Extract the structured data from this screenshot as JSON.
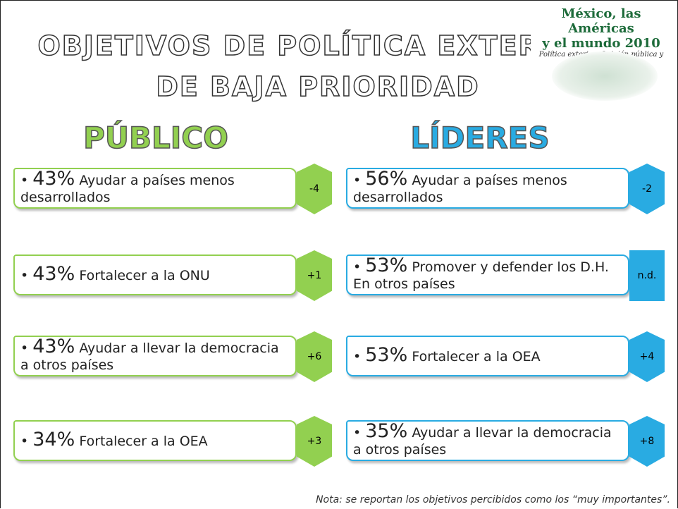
{
  "title": {
    "line1": "OBJETIVOS DE POLÍTICA EXTERIOR",
    "line2": "DE BAJA PRIORIDAD"
  },
  "logo": {
    "line1": "México, las Américas",
    "line2": "y el mundo 2010",
    "subtitle": "Política exterior: Opinión pública y líderes"
  },
  "columns": [
    {
      "heading": "PÚBLICO",
      "color": "#92d050",
      "items": [
        {
          "percent": "43%",
          "text": "Ayudar a países menos desarrollados",
          "change": "-4"
        },
        {
          "percent": "43%",
          "text": "Fortalecer a la ONU",
          "change": "+1"
        },
        {
          "percent": "43%",
          "text": "Ayudar a llevar la democracia a otros países",
          "change": "+6"
        },
        {
          "percent": "34%",
          "text": "Fortalecer a la OEA",
          "change": "+3"
        }
      ]
    },
    {
      "heading": "LÍDERES",
      "color": "#29abe2",
      "items": [
        {
          "percent": "56%",
          "text": "Ayudar a países menos desarrollados",
          "change": "-2"
        },
        {
          "percent": "53%",
          "text": "Promover y defender los D.H. En otros países",
          "change": "n.d."
        },
        {
          "percent": "53%",
          "text": "Fortalecer a la OEA",
          "change": "+4"
        },
        {
          "percent": "35%",
          "text": "Ayudar a llevar la democracia a otros países",
          "change": "+8"
        }
      ]
    }
  ],
  "note": "Nota: se reportan los objetivos percibidos como los “muy importantes”."
}
